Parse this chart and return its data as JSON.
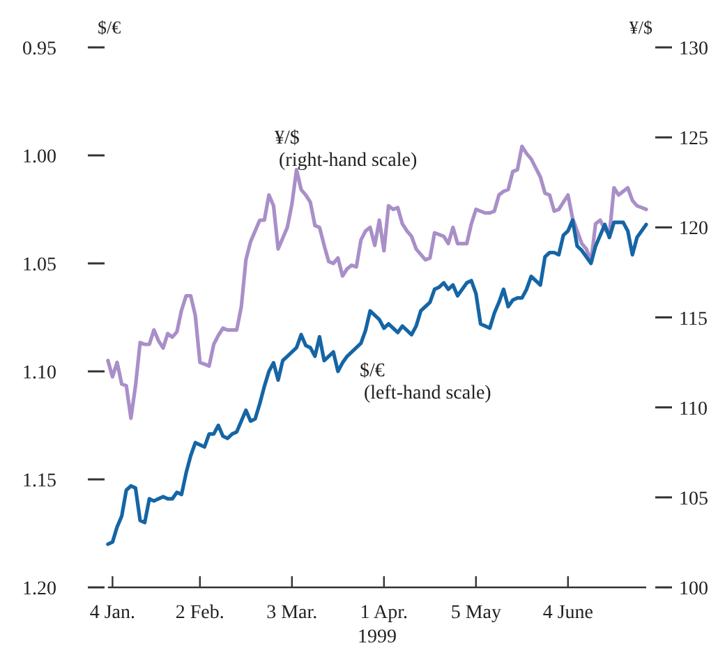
{
  "chart_data": {
    "type": "line",
    "ylabel": "$/€",
    "y2label": "¥/$",
    "xlabel": "1999",
    "categories": [
      null,
      "4 Jan.",
      null,
      null,
      null,
      null,
      null,
      null,
      null,
      null,
      null,
      null,
      null,
      null,
      null,
      null,
      null,
      null,
      null,
      null,
      "2 Feb.",
      null,
      null,
      null,
      null,
      null,
      null,
      null,
      null,
      null,
      null,
      null,
      null,
      null,
      null,
      null,
      null,
      null,
      null,
      null,
      "3 Mar.",
      null,
      null,
      null,
      null,
      null,
      null,
      null,
      null,
      null,
      null,
      null,
      null,
      null,
      null,
      null,
      null,
      null,
      null,
      null,
      "1 Apr.",
      null,
      null,
      null,
      null,
      null,
      null,
      null,
      null,
      null,
      null,
      null,
      null,
      null,
      null,
      null,
      null,
      null,
      null,
      null,
      "5 May",
      null,
      null,
      null,
      null,
      null,
      null,
      null,
      null,
      null,
      null,
      null,
      null,
      null,
      null,
      null,
      null,
      null,
      null,
      null,
      "4 June",
      null,
      null,
      null,
      null,
      null,
      null,
      null,
      null,
      null,
      null,
      null,
      null,
      null,
      null,
      null,
      null,
      null
    ],
    "ylim": [
      1.2,
      0.95
    ],
    "yticks": [
      0.95,
      {
        "value": 1,
        "label": "1.00"
      },
      1.05,
      {
        "value": 1.1,
        "label": "1.10"
      },
      1.15,
      {
        "value": 1.2,
        "label": "1.20"
      }
    ],
    "y2lim": [
      100,
      130
    ],
    "y2ticks": [
      100,
      105,
      110,
      115,
      120,
      125,
      130
    ],
    "marker": "none",
    "line_style": "solid",
    "annotations": [
      "¥/$\n(right-hand scale)",
      "$/€\n(left-hand scale)"
    ],
    "series": [
      {
        "color": "#a98fc8",
        "axis": "y2",
        "values": [
          112.6,
          111.7,
          112.5,
          111.3,
          111.2,
          109.4,
          111.2,
          113.6,
          113.5,
          113.5,
          114.3,
          113.7,
          113.3,
          114.1,
          113.9,
          114.2,
          115.4,
          116.2,
          116.2,
          115.1,
          112.5,
          112.4,
          112.3,
          113.5,
          114.0,
          114.4,
          114.3,
          114.3,
          114.3,
          115.6,
          118.2,
          119.2,
          119.8,
          120.4,
          120.4,
          121.8,
          121.2,
          118.8,
          119.4,
          120.0,
          121.3,
          123.2,
          122.1,
          121.8,
          121.4,
          120.1,
          120.0,
          119.0,
          118.1,
          118.0,
          118.3,
          117.3,
          117.7,
          117.9,
          117.8,
          119.3,
          119.8,
          120.0,
          119.0,
          120.4,
          118.7,
          121.2,
          121.0,
          121.1,
          120.2,
          119.8,
          119.5,
          118.8,
          118.5,
          118.2,
          118.3,
          119.7,
          119.6,
          119.5,
          119.1,
          120.0,
          119.1,
          119.1,
          119.1,
          120.2,
          121.0,
          120.9,
          120.8,
          120.8,
          120.9,
          121.8,
          122.0,
          122.1,
          123.1,
          123.2,
          124.5,
          124.1,
          123.8,
          123.3,
          122.8,
          121.9,
          121.8,
          120.9,
          121.0,
          121.4,
          121.8,
          120.5,
          119.8,
          119.1,
          118.8,
          118.1,
          120.2,
          120.4,
          119.9,
          119.6,
          122.2,
          121.8,
          122.0,
          122.2,
          121.5,
          121.2,
          121.1,
          121.0
        ]
      },
      {
        "color": "#1565a5",
        "values": [
          1.18,
          1.179,
          1.172,
          1.167,
          1.155,
          1.153,
          1.154,
          1.169,
          1.17,
          1.159,
          1.16,
          1.159,
          1.158,
          1.159,
          1.159,
          1.156,
          1.157,
          1.147,
          1.139,
          1.133,
          1.134,
          1.135,
          1.129,
          1.129,
          1.125,
          1.13,
          1.131,
          1.129,
          1.128,
          1.123,
          1.118,
          1.123,
          1.122,
          1.115,
          1.107,
          1.1,
          1.096,
          1.104,
          1.095,
          1.093,
          1.091,
          1.089,
          1.083,
          1.088,
          1.089,
          1.093,
          1.084,
          1.095,
          1.093,
          1.091,
          1.1,
          1.096,
          1.093,
          1.091,
          1.089,
          1.087,
          1.081,
          1.072,
          1.074,
          1.076,
          1.08,
          1.078,
          1.08,
          1.082,
          1.079,
          1.081,
          1.083,
          1.079,
          1.072,
          1.07,
          1.068,
          1.062,
          1.061,
          1.059,
          1.062,
          1.06,
          1.065,
          1.062,
          1.059,
          1.058,
          1.064,
          1.078,
          1.079,
          1.08,
          1.073,
          1.068,
          1.062,
          1.07,
          1.067,
          1.066,
          1.066,
          1.062,
          1.056,
          1.058,
          1.06,
          1.047,
          1.045,
          1.045,
          1.046,
          1.037,
          1.035,
          1.03,
          1.042,
          1.044,
          1.047,
          1.05,
          1.042,
          1.037,
          1.032,
          1.038,
          1.031,
          1.031,
          1.031,
          1.035,
          1.046,
          1.038,
          1.035,
          1.032
        ]
      }
    ]
  }
}
